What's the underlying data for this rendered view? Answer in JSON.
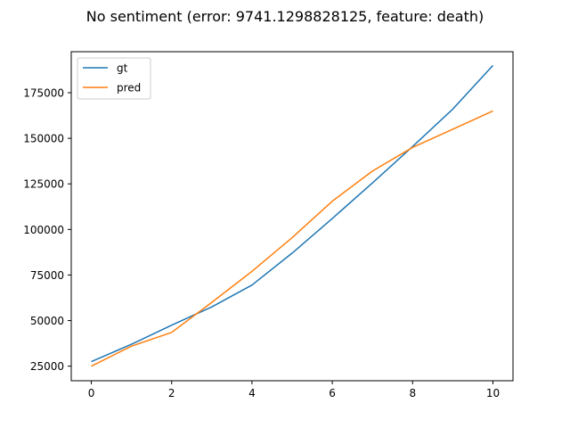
{
  "chart_data": {
    "type": "line",
    "title": "No sentiment (error: 9741.1298828125, feature: death)",
    "xlabel": "",
    "ylabel": "",
    "xlim": [
      -0.5,
      10.5
    ],
    "ylim": [
      17000,
      197500
    ],
    "x": [
      0,
      1,
      2,
      3,
      4,
      5,
      6,
      7,
      8,
      9,
      10
    ],
    "xticks": [
      0,
      2,
      4,
      6,
      8,
      10
    ],
    "yticks": [
      25000,
      50000,
      75000,
      100000,
      125000,
      150000,
      175000
    ],
    "grid": false,
    "legend_position": "upper-left",
    "series": [
      {
        "name": "gt",
        "color": "#1f77b4",
        "values": [
          27500,
          37000,
          47500,
          57500,
          69500,
          87000,
          106000,
          125500,
          145500,
          166000,
          190000
        ]
      },
      {
        "name": "pred",
        "color": "#ff7f0e",
        "values": [
          25000,
          36000,
          43500,
          60000,
          77000,
          95500,
          115500,
          132000,
          145000,
          155000,
          165000
        ]
      }
    ]
  }
}
